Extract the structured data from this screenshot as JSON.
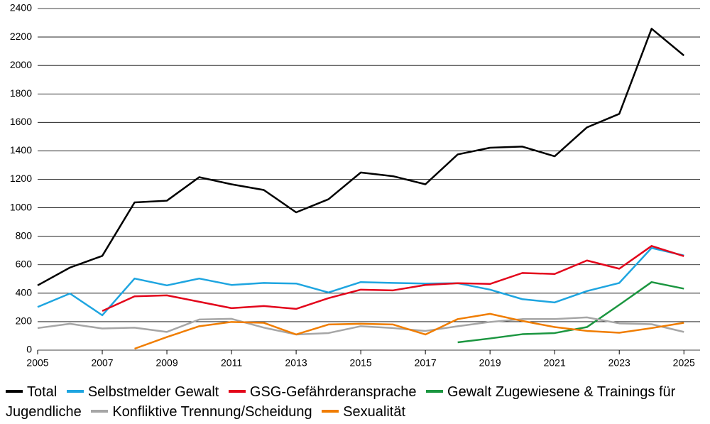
{
  "chart_data": {
    "type": "line",
    "x": [
      2005,
      2006,
      2007,
      2008,
      2009,
      2010,
      2011,
      2012,
      2013,
      2014,
      2015,
      2016,
      2017,
      2018,
      2019,
      2020,
      2021,
      2022,
      2023,
      2024,
      2025
    ],
    "xlim": [
      2005,
      2025.5
    ],
    "xticks": [
      2005,
      2007,
      2009,
      2011,
      2013,
      2015,
      2017,
      2019,
      2021,
      2023,
      2025
    ],
    "ylim": [
      0,
      2400
    ],
    "yticks": [
      0,
      200,
      400,
      600,
      800,
      1000,
      1200,
      1400,
      1600,
      1800,
      2000,
      2200,
      2400
    ],
    "grid": true,
    "legend": "bottom",
    "series": [
      {
        "name": "Total",
        "color": "#000000",
        "values": [
          455,
          580,
          662,
          1038,
          1050,
          1215,
          1165,
          1125,
          968,
          1060,
          1248,
          1222,
          1165,
          1375,
          1422,
          1430,
          1362,
          1565,
          1660,
          2258,
          2070
        ]
      },
      {
        "name": "Selbstmelder Gewalt",
        "color": "#1ea5e0",
        "values": [
          303,
          398,
          245,
          503,
          455,
          503,
          458,
          472,
          468,
          405,
          478,
          472,
          468,
          470,
          425,
          358,
          335,
          415,
          472,
          718,
          665
        ]
      },
      {
        "name": "GSG-Gefährderansprache",
        "color": "#e3051b",
        "values": [
          null,
          null,
          275,
          378,
          385,
          340,
          295,
          310,
          290,
          365,
          425,
          420,
          458,
          470,
          465,
          542,
          535,
          630,
          572,
          732,
          660
        ]
      },
      {
        "name": "Gewalt Zugewiesene & Trainings für Jugendliche",
        "color": "#1b9640",
        "values": [
          null,
          null,
          null,
          null,
          null,
          null,
          null,
          null,
          null,
          null,
          null,
          null,
          null,
          55,
          82,
          112,
          120,
          162,
          318,
          478,
          432
        ]
      },
      {
        "name": "Konfliktive Trennung/Scheidung",
        "color": "#a6a6a6",
        "values": [
          155,
          185,
          152,
          158,
          128,
          215,
          220,
          158,
          110,
          120,
          168,
          155,
          135,
          168,
          198,
          218,
          218,
          230,
          188,
          182,
          128
        ]
      },
      {
        "name": "Sexualität",
        "color": "#f07d00",
        "values": [
          null,
          null,
          null,
          10,
          92,
          168,
          198,
          192,
          110,
          180,
          185,
          180,
          110,
          218,
          255,
          205,
          162,
          135,
          122,
          155,
          192
        ]
      }
    ]
  }
}
